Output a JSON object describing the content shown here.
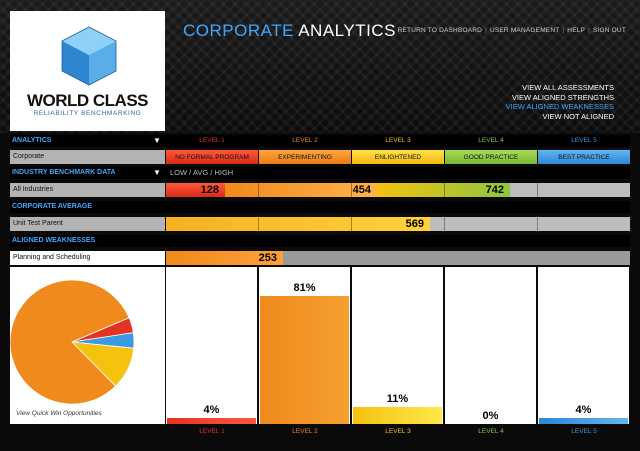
{
  "logo": {
    "title": "WORLD CLASS",
    "subtitle": "RELIABILITY BENCHMARKING"
  },
  "app_title": {
    "part1": "CORPORATE",
    "part2": " ANALYTICS"
  },
  "topnav": [
    "RETURN TO DASHBOARD",
    "USER MANAGEMENT",
    "HELP",
    "SIGN OUT"
  ],
  "views": [
    "VIEW ALL ASSESSMENTS",
    "VIEW ALIGNED STRENGTHS",
    "VIEW ALIGNED WEAKNESSES",
    "VIEW NOT ALIGNED"
  ],
  "active_view_index": 2,
  "levels": [
    "LEVEL 1",
    "LEVEL 2",
    "LEVEL 3",
    "LEVEL 4",
    "LEVEL 5"
  ],
  "level_colors": [
    "#e53222",
    "#f08a1c",
    "#f5c20f",
    "#8cc63f",
    "#3b9be0"
  ],
  "analytics": {
    "header": "ANALYTICS",
    "row_label": "Corporate",
    "stages": [
      "NO FORMAL PROGRAM",
      "EXPERIMENTING",
      "ENLIGHTENED",
      "GOOD PRACTICE",
      "BEST PRACTICE"
    ]
  },
  "benchmark": {
    "header": "INDUSTRY BENCHMARK DATA",
    "extra": "LOW / AVG / HIGH",
    "row_label": "All Industries",
    "low": 128,
    "avg": 454,
    "high": 742
  },
  "corporate_average": {
    "header": "CORPORATE AVERAGE",
    "row_label": "Unit Test Parent",
    "value": 569
  },
  "aligned_weaknesses": {
    "header": "ALIGNED WEAKNESSES",
    "row_label": "Planning and Scheduling",
    "value": 253
  },
  "distribution": {
    "caption": "View Quick Win Opportunities",
    "percent_labels": [
      "4%",
      "81%",
      "11%",
      "0%",
      "4%"
    ],
    "fractions": [
      0.04,
      0.81,
      0.11,
      0.0,
      0.04
    ]
  },
  "score_scale_max": 1000
}
